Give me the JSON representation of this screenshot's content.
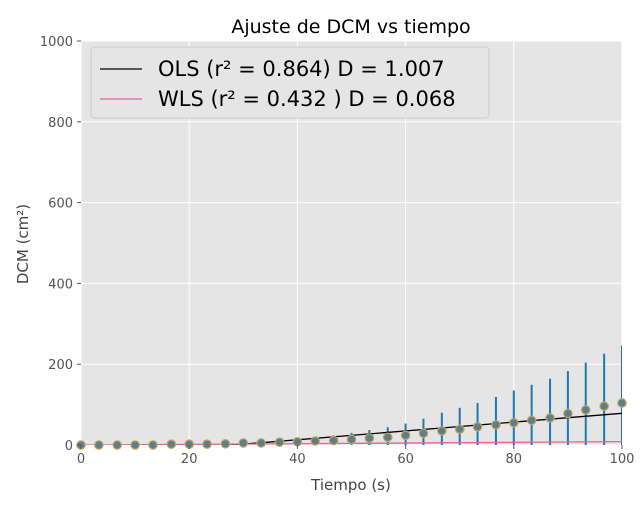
{
  "chart_data": {
    "type": "scatter",
    "title": "Ajuste de DCM vs tiempo",
    "xlabel": "Tiempo (s)",
    "ylabel": "DCM (cm²)",
    "xlim": [
      0,
      100
    ],
    "ylim": [
      0,
      1000
    ],
    "x_ticks": [
      0,
      20,
      40,
      60,
      80,
      100
    ],
    "y_ticks": [
      0,
      200,
      400,
      600,
      800,
      1000
    ],
    "grid": true,
    "legend_position": "top-left",
    "background_color": "#e5e5e5",
    "grid_color": "#ffffff",
    "series": [
      {
        "kind": "errorbar",
        "marker_color": "#5b7f8f",
        "marker_edge_color": "#c9a35a",
        "error_color": "#1f77b4",
        "x": [
          0,
          3.3,
          6.7,
          10,
          13.3,
          16.7,
          20,
          23.3,
          26.7,
          30,
          33.3,
          36.7,
          40,
          43.3,
          46.7,
          50,
          53.3,
          56.7,
          60,
          63.3,
          66.7,
          70,
          73.3,
          76.7,
          80,
          83.3,
          86.7,
          90,
          93.3,
          96.7,
          100
        ],
        "y": [
          0,
          0,
          0,
          0,
          0,
          2,
          2,
          2,
          3,
          5,
          5,
          7,
          8,
          10,
          11,
          14,
          17,
          19,
          24,
          29,
          35,
          39,
          45,
          50,
          55,
          61,
          67,
          78,
          87,
          96,
          104
        ],
        "yerr": [
          0,
          0,
          0,
          1,
          1,
          2,
          3,
          3,
          4,
          5,
          6,
          7,
          9,
          11,
          13,
          16,
          20,
          25,
          29,
          36,
          45,
          53,
          59,
          69,
          80,
          88,
          97,
          105,
          117,
          130,
          142
        ]
      },
      {
        "name": "OLS",
        "kind": "line",
        "color": "#000000",
        "x": [
          0,
          100
        ],
        "y": [
          -30.7,
          78.5
        ],
        "legend_label": "OLS (r² = 0.864)     D = 1.007"
      },
      {
        "name": "WLS",
        "kind": "line",
        "color": "#e8609a",
        "x": [
          0,
          100
        ],
        "y": [
          -0.3,
          8.3
        ],
        "legend_label": "WLS (r² = 0.432 )     D = 0.068"
      }
    ]
  }
}
